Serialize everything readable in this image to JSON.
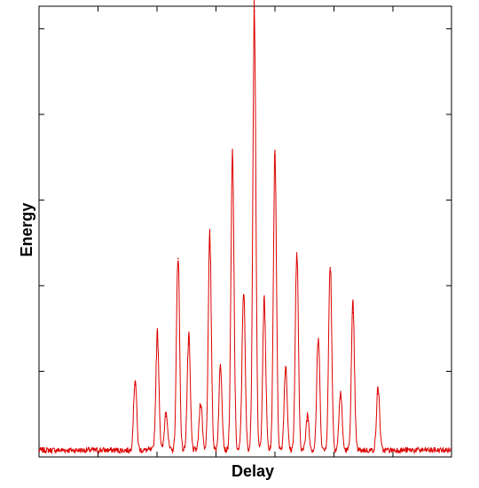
{
  "chart_data": {
    "type": "line",
    "title": "",
    "xlabel": "Delay",
    "ylabel": "Energy",
    "xlim": [
      0,
      1
    ],
    "ylim": [
      0,
      1
    ],
    "x_tick_positions": [
      0,
      0.143,
      0.286,
      0.429,
      0.572,
      0.715,
      0.858,
      1.0
    ],
    "y_tick_positions": [
      0,
      0.19,
      0.38,
      0.57,
      0.76,
      0.95,
      1.0
    ],
    "x_tick_labels": [],
    "y_tick_labels": [],
    "grid": false,
    "legend": "none",
    "series": [
      {
        "color": "#dd0000",
        "baseline": 0.015,
        "noise": 0.006,
        "peaks": [
          {
            "x": 0.233,
            "y": 0.16
          },
          {
            "x": 0.287,
            "y": 0.26
          },
          {
            "x": 0.308,
            "y": 0.09
          },
          {
            "x": 0.337,
            "y": 0.44
          },
          {
            "x": 0.363,
            "y": 0.25
          },
          {
            "x": 0.392,
            "y": 0.11
          },
          {
            "x": 0.414,
            "y": 0.47
          },
          {
            "x": 0.44,
            "y": 0.19
          },
          {
            "x": 0.469,
            "y": 0.65
          },
          {
            "x": 0.496,
            "y": 0.36
          },
          {
            "x": 0.522,
            "y": 0.99
          },
          {
            "x": 0.546,
            "y": 0.33
          },
          {
            "x": 0.572,
            "y": 0.67
          },
          {
            "x": 0.598,
            "y": 0.19
          },
          {
            "x": 0.625,
            "y": 0.44
          },
          {
            "x": 0.651,
            "y": 0.08
          },
          {
            "x": 0.677,
            "y": 0.25
          },
          {
            "x": 0.706,
            "y": 0.42
          },
          {
            "x": 0.731,
            "y": 0.13
          },
          {
            "x": 0.761,
            "y": 0.32
          },
          {
            "x": 0.822,
            "y": 0.14
          }
        ]
      }
    ]
  }
}
